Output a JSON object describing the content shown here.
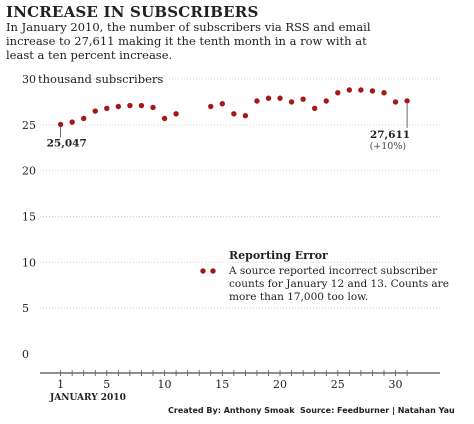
{
  "header": {
    "title": "INCREASE IN SUBSCRIBERS",
    "subtitle": "In January 2010, the number of subscribers via RSS and email increase to 27,611 making it the tenth month in a row with at least a ten percent increase."
  },
  "chart_data": {
    "type": "scatter",
    "ylabel": "thousand subscribers",
    "xlabel": "JANUARY 2010",
    "ylim": [
      0,
      30
    ],
    "xlim": [
      0,
      32
    ],
    "yticks": [
      0,
      5,
      10,
      15,
      20,
      25,
      30
    ],
    "xticks": [
      1,
      5,
      10,
      15,
      20,
      25,
      30
    ],
    "grid": true,
    "series": [
      {
        "x": [
          1,
          2,
          3,
          4,
          5,
          6,
          7,
          8,
          9,
          10,
          11,
          14,
          15,
          16,
          17,
          18,
          19,
          20,
          21,
          22,
          23,
          24,
          25,
          26,
          27,
          28,
          29,
          30,
          31
        ],
        "y": [
          25.047,
          25.3,
          25.7,
          26.5,
          26.8,
          27.0,
          27.1,
          27.1,
          26.9,
          25.7,
          26.2,
          27.0,
          27.3,
          26.2,
          26.0,
          27.6,
          27.9,
          27.9,
          27.5,
          27.8,
          26.8,
          27.6,
          28.5,
          28.8,
          28.8,
          28.7,
          28.5,
          27.5,
          27.611
        ]
      }
    ],
    "annotations": {
      "first_value": "25,047",
      "last_value": "27,611",
      "last_change": "(+10%)",
      "error_title": "Reporting Error",
      "error_lines": [
        "A source reported incorrect subscriber",
        "counts for January 12 and 13. Counts are",
        "more than 17,000 too low."
      ]
    }
  },
  "colors": {
    "dot": "#a51818",
    "grid": "#d2d2d2"
  },
  "credits": {
    "created_by": "Created By: Anthony Smoak",
    "source": "Source: Feedburner | Natahan Yau"
  }
}
